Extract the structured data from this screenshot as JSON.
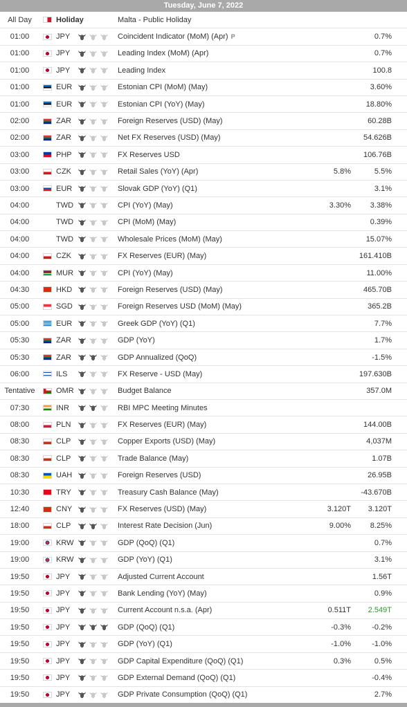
{
  "day_header": "Tuesday, June 7, 2022",
  "holiday_row": {
    "time": "All Day",
    "flag": "malta",
    "label": "Holiday",
    "event": "Malta - Public Holiday"
  },
  "colors": {
    "header_bg": "#a9a9a9",
    "row_border": "#e3e3e3",
    "bull_filled": "#555555",
    "bull_empty": "#c8c8c8",
    "positive": "#2a9d2a"
  },
  "rows": [
    {
      "time": "01:00",
      "flag": "japan",
      "currency": "JPY",
      "importance": 1,
      "event": "Coincident Indicator (MoM) (Apr)",
      "preliminary": "P",
      "forecast": "",
      "previous": "0.7%"
    },
    {
      "time": "01:00",
      "flag": "japan",
      "currency": "JPY",
      "importance": 1,
      "event": "Leading Index (MoM) (Apr)",
      "forecast": "",
      "previous": "0.7%"
    },
    {
      "time": "01:00",
      "flag": "japan",
      "currency": "JPY",
      "importance": 1,
      "event": "Leading Index",
      "forecast": "",
      "previous": "100.8"
    },
    {
      "time": "01:00",
      "flag": "estonia",
      "currency": "EUR",
      "importance": 1,
      "event": "Estonian CPI (MoM) (May)",
      "forecast": "",
      "previous": "3.60%"
    },
    {
      "time": "01:00",
      "flag": "estonia",
      "currency": "EUR",
      "importance": 1,
      "event": "Estonian CPI (YoY) (May)",
      "forecast": "",
      "previous": "18.80%"
    },
    {
      "time": "02:00",
      "flag": "south-africa",
      "currency": "ZAR",
      "importance": 1,
      "event": "Foreign Reserves (USD) (May)",
      "forecast": "",
      "previous": "60.28B"
    },
    {
      "time": "02:00",
      "flag": "south-africa",
      "currency": "ZAR",
      "importance": 1,
      "event": "Net FX Reserves (USD) (May)",
      "forecast": "",
      "previous": "54.626B"
    },
    {
      "time": "03:00",
      "flag": "philippines",
      "currency": "PHP",
      "importance": 1,
      "event": "FX Reserves USD",
      "forecast": "",
      "previous": "106.76B"
    },
    {
      "time": "03:00",
      "flag": "czech",
      "currency": "CZK",
      "importance": 1,
      "event": "Retail Sales (YoY) (Apr)",
      "forecast": "5.8%",
      "previous": "5.5%"
    },
    {
      "time": "03:00",
      "flag": "slovakia",
      "currency": "EUR",
      "importance": 1,
      "event": "Slovak GDP (YoY) (Q1)",
      "forecast": "",
      "previous": "3.1%"
    },
    {
      "time": "04:00",
      "flag": "none",
      "currency": "TWD",
      "importance": 1,
      "event": "CPI (YoY) (May)",
      "forecast": "3.30%",
      "previous": "3.38%"
    },
    {
      "time": "04:00",
      "flag": "none",
      "currency": "TWD",
      "importance": 1,
      "event": "CPI (MoM) (May)",
      "forecast": "",
      "previous": "0.39%"
    },
    {
      "time": "04:00",
      "flag": "none",
      "currency": "TWD",
      "importance": 1,
      "event": "Wholesale Prices (MoM) (May)",
      "forecast": "",
      "previous": "15.07%"
    },
    {
      "time": "04:00",
      "flag": "czech",
      "currency": "CZK",
      "importance": 1,
      "event": "FX Reserves (EUR) (May)",
      "forecast": "",
      "previous": "161.410B"
    },
    {
      "time": "04:00",
      "flag": "mauritius",
      "currency": "MUR",
      "importance": 1,
      "event": "CPI (YoY) (May)",
      "forecast": "",
      "previous": "11.00%"
    },
    {
      "time": "04:30",
      "flag": "hong-kong",
      "currency": "HKD",
      "importance": 1,
      "event": "Foreign Reserves (USD) (May)",
      "forecast": "",
      "previous": "465.70B"
    },
    {
      "time": "05:00",
      "flag": "singapore",
      "currency": "SGD",
      "importance": 1,
      "event": "Foreign Reserves USD (MoM) (May)",
      "forecast": "",
      "previous": "365.2B"
    },
    {
      "time": "05:00",
      "flag": "greece",
      "currency": "EUR",
      "importance": 1,
      "event": "Greek GDP (YoY) (Q1)",
      "forecast": "",
      "previous": "7.7%"
    },
    {
      "time": "05:30",
      "flag": "south-africa",
      "currency": "ZAR",
      "importance": 1,
      "event": "GDP (YoY)",
      "forecast": "",
      "previous": "1.7%"
    },
    {
      "time": "05:30",
      "flag": "south-africa",
      "currency": "ZAR",
      "importance": 2,
      "event": "GDP Annualized (QoQ)",
      "forecast": "",
      "previous": "-1.5%"
    },
    {
      "time": "06:00",
      "flag": "israel",
      "currency": "ILS",
      "importance": 1,
      "event": "FX Reserve - USD (May)",
      "forecast": "",
      "previous": "197.630B"
    },
    {
      "time": "Tentative",
      "flag": "oman",
      "currency": "OMR",
      "importance": 1,
      "event": "Budget Balance",
      "forecast": "",
      "previous": "357.0M"
    },
    {
      "time": "07:30",
      "flag": "india",
      "currency": "INR",
      "importance": 2,
      "event": "RBI MPC Meeting Minutes",
      "forecast": "",
      "previous": ""
    },
    {
      "time": "08:00",
      "flag": "poland",
      "currency": "PLN",
      "importance": 1,
      "event": "FX Reserves (EUR) (May)",
      "forecast": "",
      "previous": "144.00B"
    },
    {
      "time": "08:30",
      "flag": "chile",
      "currency": "CLP",
      "importance": 1,
      "event": "Copper Exports (USD) (May)",
      "forecast": "",
      "previous": "4,037M"
    },
    {
      "time": "08:30",
      "flag": "chile",
      "currency": "CLP",
      "importance": 1,
      "event": "Trade Balance (May)",
      "forecast": "",
      "previous": "1.07B"
    },
    {
      "time": "08:30",
      "flag": "ukraine",
      "currency": "UAH",
      "importance": 1,
      "event": "Foreign Reserves (USD)",
      "forecast": "",
      "previous": "26.95B"
    },
    {
      "time": "10:30",
      "flag": "turkey",
      "currency": "TRY",
      "importance": 1,
      "event": "Treasury Cash Balance (May)",
      "forecast": "",
      "previous": "-43.670B"
    },
    {
      "time": "12:40",
      "flag": "china",
      "currency": "CNY",
      "importance": 1,
      "event": "FX Reserves (USD) (May)",
      "forecast": "3.120T",
      "previous": "3.120T"
    },
    {
      "time": "18:00",
      "flag": "chile",
      "currency": "CLP",
      "importance": 2,
      "event": "Interest Rate Decision (Jun)",
      "forecast": "9.00%",
      "previous": "8.25%"
    },
    {
      "time": "19:00",
      "flag": "korea",
      "currency": "KRW",
      "importance": 1,
      "event": "GDP (QoQ) (Q1)",
      "forecast": "",
      "previous": "0.7%"
    },
    {
      "time": "19:00",
      "flag": "korea",
      "currency": "KRW",
      "importance": 1,
      "event": "GDP (YoY) (Q1)",
      "forecast": "",
      "previous": "3.1%"
    },
    {
      "time": "19:50",
      "flag": "japan",
      "currency": "JPY",
      "importance": 1,
      "event": "Adjusted Current Account",
      "forecast": "",
      "previous": "1.56T"
    },
    {
      "time": "19:50",
      "flag": "japan",
      "currency": "JPY",
      "importance": 1,
      "event": "Bank Lending (YoY) (May)",
      "forecast": "",
      "previous": "0.9%"
    },
    {
      "time": "19:50",
      "flag": "japan",
      "currency": "JPY",
      "importance": 1,
      "event": "Current Account n.s.a. (Apr)",
      "forecast": "0.511T",
      "previous": "2.549T",
      "previous_positive": true
    },
    {
      "time": "19:50",
      "flag": "japan",
      "currency": "JPY",
      "importance": 3,
      "event": "GDP (QoQ) (Q1)",
      "forecast": "-0.3%",
      "previous": "-0.2%"
    },
    {
      "time": "19:50",
      "flag": "japan",
      "currency": "JPY",
      "importance": 1,
      "event": "GDP (YoY) (Q1)",
      "forecast": "-1.0%",
      "previous": "-1.0%"
    },
    {
      "time": "19:50",
      "flag": "japan",
      "currency": "JPY",
      "importance": 1,
      "event": "GDP Capital Expenditure (QoQ) (Q1)",
      "forecast": "0.3%",
      "previous": "0.5%"
    },
    {
      "time": "19:50",
      "flag": "japan",
      "currency": "JPY",
      "importance": 1,
      "event": "GDP External Demand (QoQ) (Q1)",
      "forecast": "",
      "previous": "-0.4%"
    },
    {
      "time": "19:50",
      "flag": "japan",
      "currency": "JPY",
      "importance": 1,
      "event": "GDP Private Consumption (QoQ) (Q1)",
      "forecast": "",
      "previous": "2.7%"
    }
  ]
}
